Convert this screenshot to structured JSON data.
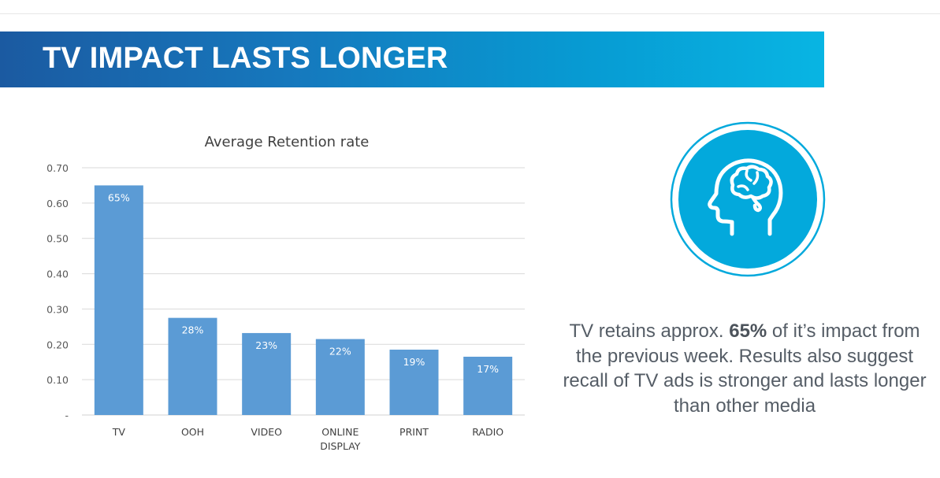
{
  "header": {
    "title": "TV IMPACT LASTS LONGER"
  },
  "chart_data": {
    "type": "bar",
    "title": "Average Retention rate",
    "xlabel": "",
    "ylabel": "",
    "categories": [
      [
        "TV"
      ],
      [
        "OOH"
      ],
      [
        "VIDEO"
      ],
      [
        "ONLINE",
        "DISPLAY"
      ],
      [
        "PRINT"
      ],
      [
        "RADIO"
      ]
    ],
    "values": [
      0.65,
      0.275,
      0.232,
      0.215,
      0.185,
      0.165
    ],
    "data_labels": [
      "65%",
      "28%",
      "23%",
      "22%",
      "19%",
      "17%"
    ],
    "ylim": [
      0,
      0.7
    ],
    "yticks": [
      0,
      0.1,
      0.2,
      0.3,
      0.4,
      0.5,
      0.6,
      0.7
    ],
    "ytick_labels": [
      "-",
      "0.10",
      "0.20",
      "0.30",
      "0.40",
      "0.50",
      "0.60",
      "0.70"
    ],
    "grid": true,
    "legend": "none",
    "bar_color": "#5b9bd5"
  },
  "icon": {
    "name": "head-brain-icon",
    "color": "#03a9dc"
  },
  "caption": {
    "part1": "TV retains approx. ",
    "highlight": "65%",
    "part2": " of it’s impact from the previous week. Results also suggest recall of TV ads is stronger and lasts longer than other media"
  }
}
